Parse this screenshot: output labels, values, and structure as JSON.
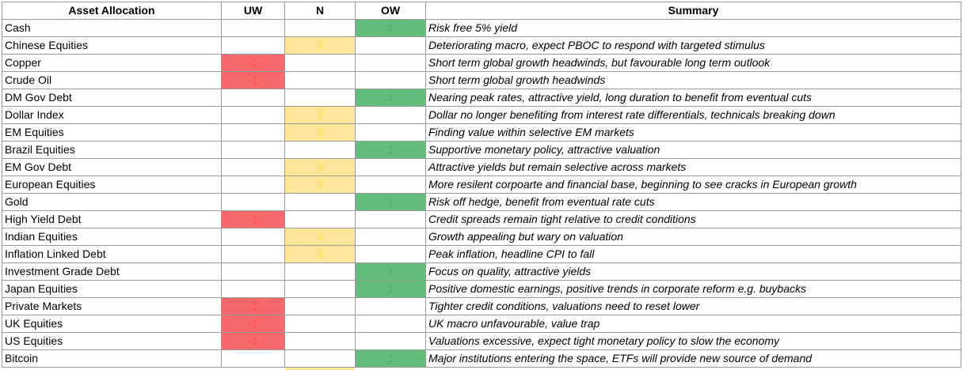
{
  "table": {
    "header": [
      "Asset Allocation",
      "UW",
      "N",
      "OW",
      "Summary"
    ],
    "rows": [
      [
        "Cash",
        null,
        null,
        1,
        "Risk free 5% yield"
      ],
      [
        "Chinese Equities",
        null,
        0,
        null,
        "Deteriorating macro, expect PBOC to respond with targeted stimulus"
      ],
      [
        "Copper",
        -1,
        null,
        null,
        "Short term global growth headwinds, but favourable long term outlook"
      ],
      [
        "Crude Oil",
        -1,
        null,
        null,
        "Short term global growth headwinds"
      ],
      [
        "DM Gov Debt",
        null,
        null,
        1,
        "Nearing peak rates, attractive yield, long duration to benefit  from eventual cuts"
      ],
      [
        "Dollar Index",
        null,
        0,
        null,
        "Dollar no longer benefiting from interest rate differentials, technicals breaking down"
      ],
      [
        "EM Equities",
        null,
        0,
        null,
        "Finding value within selective EM markets"
      ],
      [
        "Brazil Equities",
        null,
        null,
        1,
        "Supportive monetary policy, attractive valuation"
      ],
      [
        "EM Gov Debt",
        null,
        0,
        null,
        "Attractive yields but remain selective across markets"
      ],
      [
        "European Equities",
        null,
        0,
        null,
        "More resilent corpoarte and financial base, beginning to see cracks in European growth"
      ],
      [
        "Gold",
        null,
        null,
        1,
        "Risk off hedge, benefit from eventual rate cuts"
      ],
      [
        "High Yield Debt",
        -1,
        null,
        null,
        "Credit spreads remain tight relative to credit conditions"
      ],
      [
        "Indian Equities",
        null,
        0,
        null,
        "Growth appealing but wary on valuation"
      ],
      [
        "Inflation Linked Debt",
        null,
        0,
        null,
        "Peak inflation, headline CPI to fall"
      ],
      [
        "Investment Grade Debt",
        null,
        null,
        1,
        "Focus on quality, attractive yields"
      ],
      [
        "Japan Equities",
        null,
        null,
        1,
        "Positive domestic earnings, positive trends in corporate reform e.g. buybacks"
      ],
      [
        "Private Markets",
        -1,
        null,
        null,
        "Tighter credit conditions, valuations need to reset lower"
      ],
      [
        "UK Equities",
        -1,
        null,
        null,
        "UK macro unfavourable, value trap"
      ],
      [
        "US Equities",
        -1,
        null,
        null,
        "Valuations excessive, expect tight monetary policy to slow the economy"
      ],
      [
        "Bitcoin",
        null,
        null,
        1,
        "Major institutions entering the space, ETFs will provide new source of demand"
      ]
    ]
  }
}
